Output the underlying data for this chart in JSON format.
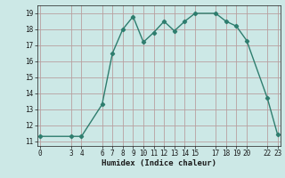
{
  "x": [
    0,
    3,
    4,
    6,
    7,
    8,
    9,
    10,
    11,
    12,
    13,
    14,
    15,
    17,
    18,
    19,
    20,
    22,
    23
  ],
  "y": [
    11.3,
    11.3,
    11.3,
    13.3,
    16.5,
    18.0,
    18.8,
    17.2,
    17.8,
    18.5,
    17.9,
    18.5,
    19.0,
    19.0,
    18.5,
    18.2,
    17.3,
    13.7,
    11.4
  ],
  "x_ticks": [
    0,
    3,
    4,
    6,
    7,
    8,
    9,
    10,
    11,
    12,
    13,
    14,
    15,
    17,
    18,
    19,
    20,
    22,
    23
  ],
  "x_tick_labels": [
    "0",
    "3",
    "4",
    "6",
    "7",
    "8",
    "9",
    "10",
    "11",
    "12",
    "13",
    "14",
    "15",
    "17",
    "18",
    "19",
    "20",
    "22",
    "23"
  ],
  "y_ticks": [
    11,
    12,
    13,
    14,
    15,
    16,
    17,
    18,
    19
  ],
  "xlabel": "Humidex (Indice chaleur)",
  "xlim": [
    -0.3,
    23.3
  ],
  "ylim": [
    10.7,
    19.5
  ],
  "line_color": "#2e7d6e",
  "marker": "D",
  "marker_size": 2.2,
  "bg_color": "#cce8e6",
  "grid_color": "#b8a0a0",
  "font_color": "#1a1a1a",
  "font_family": "monospace",
  "tick_fontsize": 5.5,
  "label_fontsize": 6.5
}
